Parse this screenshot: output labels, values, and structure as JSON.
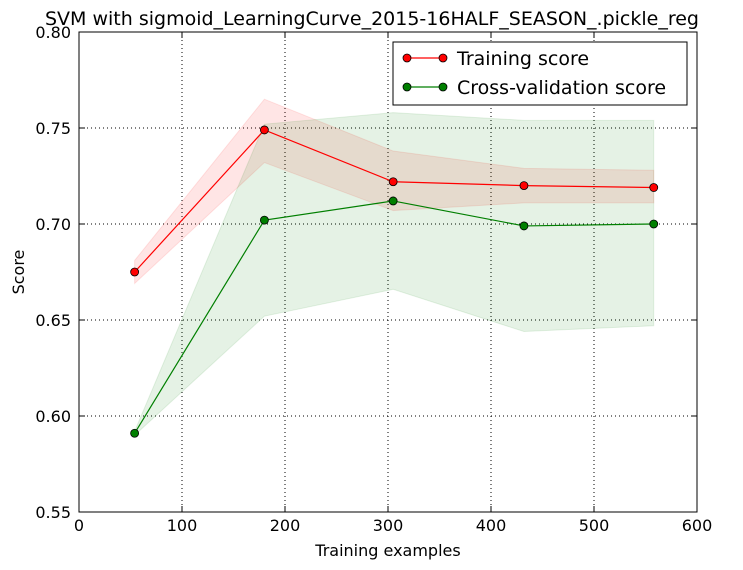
{
  "chart_data": {
    "type": "line",
    "title": "SVM with sigmoid_LearningCurve_2015-16HALF_SEASON_.pickle_reg",
    "xlabel": "Training examples",
    "ylabel": "Score",
    "xlim": [
      0,
      600
    ],
    "ylim": [
      0.55,
      0.8
    ],
    "xticks": [
      0,
      100,
      200,
      300,
      400,
      500,
      600
    ],
    "yticks": [
      0.55,
      0.6,
      0.65,
      0.7,
      0.75,
      0.8
    ],
    "xtick_labels": [
      "0",
      "100",
      "200",
      "300",
      "400",
      "500",
      "600"
    ],
    "ytick_labels": [
      "0.55",
      "0.60",
      "0.65",
      "0.70",
      "0.75",
      "0.80"
    ],
    "grid": true,
    "legend_position": "top-right",
    "x": [
      54,
      180,
      305,
      432,
      558
    ],
    "series": [
      {
        "name": "Training score",
        "color": "#ff0000",
        "band_color": "#ff0000",
        "values": [
          0.675,
          0.749,
          0.722,
          0.72,
          0.719
        ],
        "upper": [
          0.681,
          0.765,
          0.738,
          0.729,
          0.728
        ],
        "lower": [
          0.669,
          0.732,
          0.707,
          0.711,
          0.711
        ]
      },
      {
        "name": "Cross-validation score",
        "color": "#007f00",
        "band_color": "#008000",
        "values": [
          0.591,
          0.702,
          0.712,
          0.699,
          0.7
        ],
        "upper": [
          0.592,
          0.752,
          0.758,
          0.754,
          0.754
        ],
        "lower": [
          0.59,
          0.652,
          0.666,
          0.644,
          0.647
        ]
      }
    ]
  }
}
